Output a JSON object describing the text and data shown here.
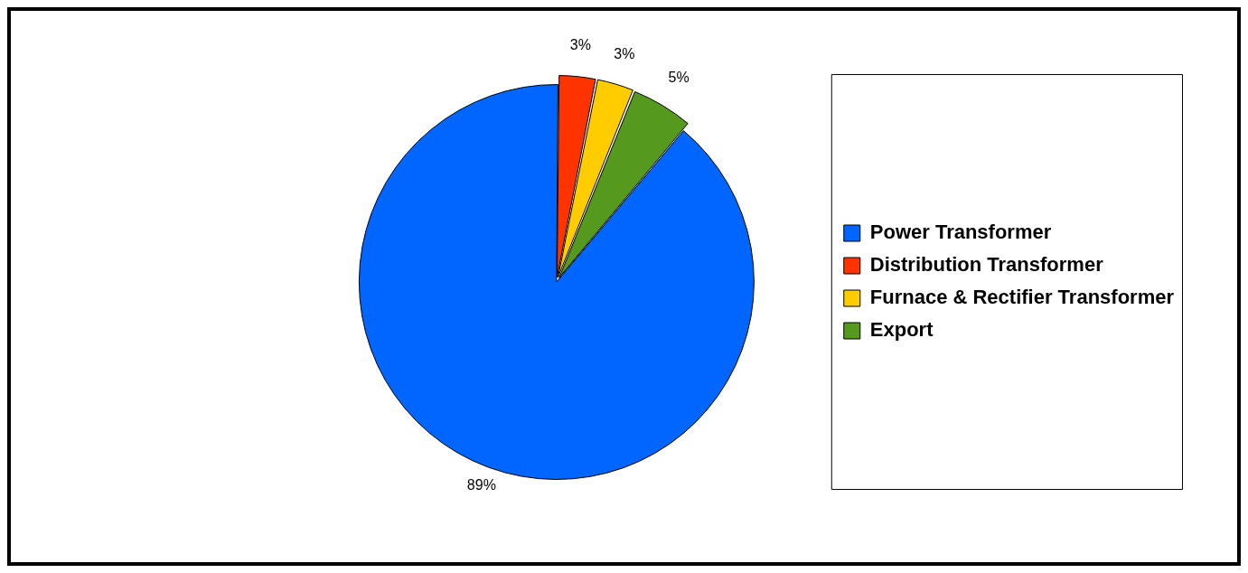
{
  "chart_data": {
    "type": "pie",
    "categories": [
      "Power Transformer",
      "Distribution Transformer",
      "Furnace & Rectifier Transformer",
      "Export"
    ],
    "values": [
      89,
      3,
      3,
      5
    ],
    "colors": [
      "#0066ff",
      "#ff3300",
      "#ffcc00",
      "#559a1e"
    ],
    "value_labels": [
      "89%",
      "3%",
      "3%",
      "5%"
    ],
    "legend": "right"
  }
}
